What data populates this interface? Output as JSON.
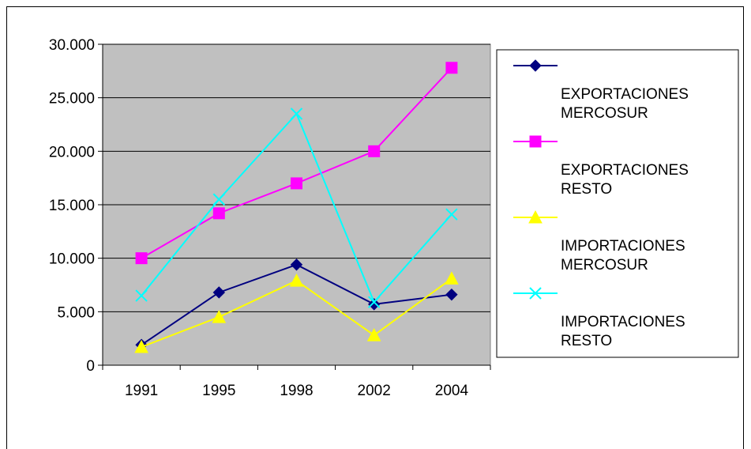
{
  "chart_data": {
    "type": "line",
    "categories": [
      "1991",
      "1995",
      "1998",
      "2002",
      "2004"
    ],
    "y_ticks": [
      "0",
      "5.000",
      "10.000",
      "15.000",
      "20.000",
      "25.000",
      "30.000"
    ],
    "ylim": [
      0,
      30000
    ],
    "grid": true,
    "plot_background": "#c0c0c0",
    "legend_position": "right",
    "series": [
      {
        "name_lines": [
          "EXPORTACIONES",
          "MERCOSUR"
        ],
        "color": "#000080",
        "marker": "diamond",
        "values": [
          1900,
          6800,
          9400,
          5700,
          6600
        ]
      },
      {
        "name_lines": [
          "EXPORTACIONES",
          "RESTO"
        ],
        "color": "#ff00ff",
        "marker": "square",
        "values": [
          10000,
          14200,
          17000,
          20000,
          27800
        ]
      },
      {
        "name_lines": [
          "IMPORTACIONES",
          "MERCOSUR"
        ],
        "color": "#ffff00",
        "marker": "triangle",
        "values": [
          1700,
          4500,
          7900,
          2800,
          8100
        ]
      },
      {
        "name_lines": [
          "IMPORTACIONES",
          "RESTO"
        ],
        "color": "#00ffff",
        "marker": "x",
        "values": [
          6500,
          15500,
          23500,
          5900,
          14100
        ]
      }
    ]
  }
}
